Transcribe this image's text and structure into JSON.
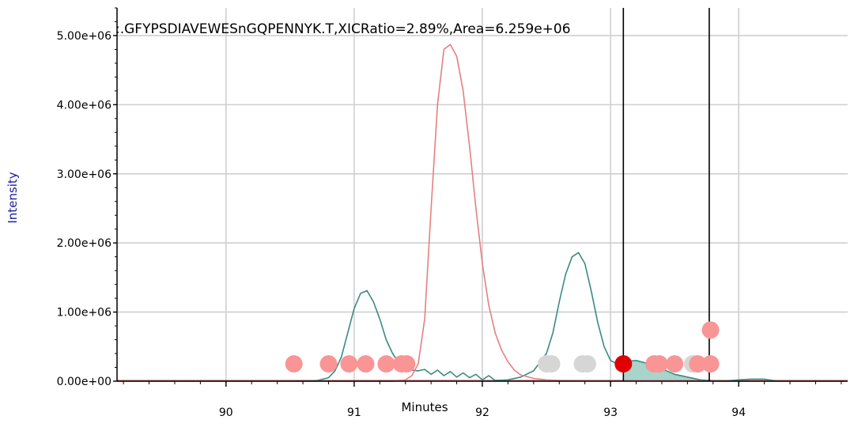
{
  "chart_data": {
    "type": "line",
    "title": ":.GFYPSDIAVEWESnGQPENNYK.T,XICRatio=2.89%,Area=6.259e+06",
    "xlabel": "Minutes",
    "ylabel": "Intensity",
    "xlim": [
      89.15,
      94.85
    ],
    "ylim": [
      0,
      5400000
    ],
    "x_ticks": [
      90,
      91,
      92,
      93,
      94
    ],
    "x_tick_labels": [
      "90",
      "91",
      "92",
      "93",
      "94"
    ],
    "y_ticks": [
      0,
      1000000,
      2000000,
      3000000,
      4000000,
      5000000
    ],
    "y_tick_labels": [
      "0.00e+00",
      "1.00e+06",
      "2.00e+06",
      "3.00e+06",
      "4.00e+06",
      "5.00e+06"
    ],
    "grid": true,
    "colors": {
      "teal": "#3a8a85",
      "red": "#e58080",
      "fill": "#a8d4cc",
      "marker_pink": "#fa9595",
      "marker_gray": "#d6d6d6",
      "marker_red": "#e00000",
      "label_blue": "#1a1aa0"
    },
    "series": [
      {
        "color": "#3a8a85",
        "x": [
          90.55,
          90.7,
          90.8,
          90.85,
          90.9,
          90.95,
          91.0,
          91.05,
          91.1,
          91.15,
          91.2,
          91.25,
          91.3,
          91.35,
          91.4,
          91.45,
          91.5,
          91.55,
          91.6,
          91.65,
          91.7,
          91.75,
          91.8,
          91.85,
          91.9,
          91.95,
          92.0,
          92.05,
          92.1,
          92.2,
          92.3,
          92.4,
          92.5,
          92.55,
          92.6,
          92.65,
          92.7,
          92.75,
          92.8,
          92.85,
          92.9,
          92.95,
          93.0,
          93.05,
          93.1,
          93.2,
          93.3,
          93.4,
          93.5,
          93.6,
          93.7,
          93.8,
          93.9,
          94.0,
          94.1,
          94.2,
          94.3
        ],
        "y": [
          0,
          5000,
          50000,
          150000,
          350000,
          700000,
          1050000,
          1270000,
          1310000,
          1150000,
          900000,
          600000,
          400000,
          260000,
          190000,
          160000,
          150000,
          170000,
          100000,
          160000,
          80000,
          140000,
          60000,
          120000,
          50000,
          100000,
          20000,
          80000,
          10000,
          20000,
          60000,
          150000,
          400000,
          700000,
          1150000,
          1550000,
          1800000,
          1860000,
          1700000,
          1300000,
          850000,
          500000,
          300000,
          250000,
          280000,
          300000,
          250000,
          180000,
          100000,
          60000,
          20000,
          5000,
          2000,
          20000,
          30000,
          30000,
          0
        ]
      },
      {
        "color": "#e58080",
        "x": [
          89.15,
          91.3,
          91.4,
          91.45,
          91.5,
          91.55,
          91.6,
          91.65,
          91.7,
          91.75,
          91.8,
          91.85,
          91.9,
          91.95,
          92.0,
          92.05,
          92.1,
          92.15,
          92.2,
          92.25,
          92.3,
          92.4,
          92.5,
          92.6,
          92.8,
          93.0,
          93.5,
          94.0,
          94.85
        ],
        "y": [
          0,
          0,
          20000,
          80000,
          250000,
          900000,
          2500000,
          4000000,
          4800000,
          4870000,
          4700000,
          4200000,
          3400000,
          2500000,
          1700000,
          1100000,
          700000,
          450000,
          280000,
          160000,
          90000,
          40000,
          20000,
          10000,
          5000,
          5000,
          5000,
          0,
          0
        ]
      }
    ],
    "integration_boundaries": [
      93.1,
      93.77
    ],
    "markers": [
      {
        "x": 90.53,
        "y": 250000,
        "color": "#fa9595"
      },
      {
        "x": 90.8,
        "y": 250000,
        "color": "#fa9595"
      },
      {
        "x": 90.96,
        "y": 250000,
        "color": "#fa9595"
      },
      {
        "x": 91.09,
        "y": 250000,
        "color": "#fa9595"
      },
      {
        "x": 91.25,
        "y": 250000,
        "color": "#fa9595"
      },
      {
        "x": 91.37,
        "y": 250000,
        "color": "#fa9595"
      },
      {
        "x": 91.41,
        "y": 250000,
        "color": "#fa9595"
      },
      {
        "x": 92.5,
        "y": 250000,
        "color": "#d6d6d6"
      },
      {
        "x": 92.54,
        "y": 250000,
        "color": "#d6d6d6"
      },
      {
        "x": 92.78,
        "y": 250000,
        "color": "#d6d6d6"
      },
      {
        "x": 92.82,
        "y": 250000,
        "color": "#d6d6d6"
      },
      {
        "x": 93.34,
        "y": 250000,
        "color": "#fa9595"
      },
      {
        "x": 93.38,
        "y": 250000,
        "color": "#fa9595"
      },
      {
        "x": 93.5,
        "y": 250000,
        "color": "#fa9595"
      },
      {
        "x": 93.64,
        "y": 250000,
        "color": "#d6d6d6"
      },
      {
        "x": 93.68,
        "y": 250000,
        "color": "#fa9595"
      },
      {
        "x": 93.78,
        "y": 250000,
        "color": "#fa9595"
      },
      {
        "x": 93.78,
        "y": 740000,
        "color": "#fa9595"
      },
      {
        "x": 93.1,
        "y": 250000,
        "color": "#e00000"
      }
    ]
  }
}
